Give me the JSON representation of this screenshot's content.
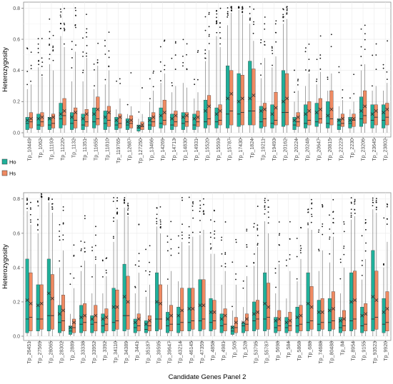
{
  "colors": {
    "ho": "#1fb09a",
    "hs": "#ef8a62",
    "grid": "#ebebeb",
    "panel_border": "#8c8c8c",
    "whisker": "#7a7a7a"
  },
  "legend": {
    "items": [
      {
        "key": "ho",
        "label": "Ho"
      },
      {
        "key": "hs",
        "label": "Hs"
      }
    ]
  },
  "chart_data": [
    {
      "type": "box",
      "title": "",
      "xlabel": "",
      "ylabel": "Heterozygosity",
      "ylim": [
        0,
        0.82
      ],
      "yticks": [
        "0.0",
        "0.2",
        "0.4",
        "0.6",
        "0.8"
      ],
      "legend_position": "left",
      "categories": [
        "Tp_10449",
        "Tp_1062",
        "Tp_11193",
        "Tp_11220",
        "Tp_1132",
        "Tp_11351",
        "Tp_11655",
        "Tp_11810",
        "Tp_119765",
        "Tp_12687",
        "Tp_127250",
        "Tp_13466",
        "Tp_14269",
        "Tp_14713",
        "Tp_14830",
        "Tp_14931",
        "Tp_15520",
        "Tp_15593",
        "Tp_15787",
        "Tp_17430",
        "Tp_1824",
        "Tp_19211",
        "Tp_19493",
        "Tp_20162",
        "Tp_20224",
        "Tp_20248",
        "Tp_20647",
        "Tp_20815",
        "Tp_22223",
        "Tp_2230",
        "Tp_23206",
        "Tp_23645",
        "Tp_23802"
      ],
      "series": [
        {
          "name": "Ho",
          "q1": [
            0.02,
            0.02,
            0.02,
            0.03,
            0.02,
            0.02,
            0.03,
            0.02,
            0.02,
            0.02,
            0.01,
            0.02,
            0.03,
            0.02,
            0.02,
            0.02,
            0.03,
            0.03,
            0.03,
            0.04,
            0.05,
            0.03,
            0.03,
            0.04,
            0.02,
            0.03,
            0.04,
            0.03,
            0.02,
            0.03,
            0.04,
            0.03,
            0.03
          ],
          "median": [
            0.06,
            0.05,
            0.05,
            0.09,
            0.06,
            0.05,
            0.07,
            0.06,
            0.05,
            0.05,
            0.03,
            0.05,
            0.06,
            0.05,
            0.06,
            0.05,
            0.07,
            0.07,
            0.12,
            0.12,
            0.14,
            0.07,
            0.06,
            0.13,
            0.05,
            0.06,
            0.07,
            0.06,
            0.05,
            0.06,
            0.09,
            0.08,
            0.08
          ],
          "q3": [
            0.1,
            0.12,
            0.1,
            0.19,
            0.13,
            0.12,
            0.16,
            0.14,
            0.1,
            0.09,
            0.05,
            0.1,
            0.16,
            0.12,
            0.13,
            0.12,
            0.21,
            0.16,
            0.43,
            0.38,
            0.46,
            0.17,
            0.18,
            0.4,
            0.1,
            0.18,
            0.19,
            0.2,
            0.09,
            0.1,
            0.23,
            0.18,
            0.18
          ],
          "whisker_low": [
            0,
            0,
            0,
            0,
            0,
            0,
            0,
            0,
            0,
            0,
            0,
            0,
            0,
            0,
            0,
            0,
            0,
            0,
            0,
            0,
            0,
            0,
            0,
            0,
            0,
            0,
            0,
            0,
            0,
            0,
            0,
            0,
            0
          ],
          "whisker_high": [
            0.28,
            0.42,
            0.44,
            0.62,
            0.33,
            0.33,
            0.28,
            0.31,
            0.15,
            0.12,
            0.09,
            0.2,
            0.32,
            0.26,
            0.32,
            0.22,
            0.46,
            0.62,
            0.69,
            0.79,
            0.7,
            0.35,
            0.42,
            0.7,
            0.2,
            0.3,
            0.31,
            0.27,
            0.17,
            0.15,
            0.4,
            0.27,
            0.27
          ],
          "mean": [
            0.08,
            0.09,
            0.09,
            0.12,
            0.1,
            0.09,
            0.12,
            0.1,
            0.08,
            0.07,
            0.04,
            0.08,
            0.11,
            0.09,
            0.1,
            0.09,
            0.14,
            0.12,
            0.22,
            0.2,
            0.22,
            0.14,
            0.12,
            0.2,
            0.08,
            0.12,
            0.13,
            0.11,
            0.08,
            0.08,
            0.14,
            0.12,
            0.13
          ]
        },
        {
          "name": "Hs",
          "q1": [
            0.03,
            0.04,
            0.03,
            0.05,
            0.03,
            0.04,
            0.05,
            0.04,
            0.03,
            0.03,
            0.02,
            0.04,
            0.05,
            0.04,
            0.04,
            0.04,
            0.05,
            0.05,
            0.05,
            0.05,
            0.05,
            0.04,
            0.05,
            0.05,
            0.04,
            0.05,
            0.06,
            0.05,
            0.04,
            0.04,
            0.06,
            0.05,
            0.05
          ],
          "median": [
            0.07,
            0.07,
            0.06,
            0.11,
            0.08,
            0.07,
            0.09,
            0.08,
            0.06,
            0.06,
            0.04,
            0.07,
            0.08,
            0.07,
            0.07,
            0.07,
            0.09,
            0.08,
            0.14,
            0.13,
            0.14,
            0.09,
            0.08,
            0.13,
            0.07,
            0.08,
            0.09,
            0.09,
            0.06,
            0.08,
            0.11,
            0.1,
            0.1
          ],
          "q3": [
            0.13,
            0.13,
            0.12,
            0.22,
            0.16,
            0.15,
            0.23,
            0.17,
            0.12,
            0.11,
            0.07,
            0.13,
            0.21,
            0.14,
            0.13,
            0.14,
            0.24,
            0.18,
            0.4,
            0.37,
            0.41,
            0.19,
            0.26,
            0.38,
            0.13,
            0.2,
            0.22,
            0.27,
            0.12,
            0.12,
            0.27,
            0.18,
            0.19
          ],
          "whisker_low": [
            0,
            0,
            0,
            0,
            0,
            0,
            0,
            0,
            0,
            0,
            0,
            0,
            0,
            0,
            0,
            0,
            0,
            0,
            0,
            0,
            0,
            0,
            0,
            0,
            0,
            0,
            0,
            0,
            0,
            0,
            0,
            0,
            0
          ],
          "whisker_high": [
            0.31,
            0.36,
            0.4,
            0.55,
            0.52,
            0.48,
            0.43,
            0.4,
            0.22,
            0.17,
            0.12,
            0.27,
            0.38,
            0.3,
            0.29,
            0.26,
            0.53,
            0.55,
            0.77,
            0.76,
            0.59,
            0.48,
            0.49,
            0.73,
            0.27,
            0.38,
            0.39,
            0.38,
            0.21,
            0.2,
            0.44,
            0.3,
            0.32
          ],
          "mean": [
            0.09,
            0.1,
            0.1,
            0.14,
            0.13,
            0.12,
            0.15,
            0.13,
            0.1,
            0.08,
            0.05,
            0.1,
            0.13,
            0.11,
            0.11,
            0.1,
            0.17,
            0.14,
            0.25,
            0.22,
            0.24,
            0.15,
            0.16,
            0.22,
            0.1,
            0.14,
            0.15,
            0.15,
            0.09,
            0.09,
            0.17,
            0.14,
            0.15
          ]
        }
      ]
    },
    {
      "type": "box",
      "title": "",
      "xlabel": "Candidate Genes Panel 2",
      "ylabel": "Heterozygosity",
      "ylim": [
        0,
        0.82
      ],
      "yticks": [
        "0.0",
        "0.2",
        "0.4",
        "0.6",
        "0.8"
      ],
      "legend_position": "left",
      "categories": [
        "Tp_26451",
        "Tp_27569",
        "Tp_28065",
        "Tp_28302",
        "Tp_2889",
        "Tp_33338",
        "Tp_33952",
        "Tp_3392",
        "Tp_34110",
        "Tp_34389",
        "Tp_3441",
        "Tp_35187",
        "Tp_39595",
        "Tp_39647",
        "Tp_43214",
        "Tp_46145",
        "Tp_47359",
        "Tp_4858",
        "Tp_4981",
        "Tp_505",
        "Tp_528",
        "Tp_53795",
        "Tp_55787",
        "Tp_5698",
        "Tp_584",
        "Tp_5868",
        "Tp_688",
        "Tp_74688",
        "Tp_80488",
        "Tp_84",
        "Tp_8954",
        "Tp_9155",
        "Tp_93523",
        "Tp_9920"
      ],
      "series": [
        {
          "name": "Ho",
          "q1": [
            0.02,
            0.03,
            0.03,
            0.02,
            0.01,
            0.02,
            0.02,
            0.02,
            0.03,
            0.03,
            0.02,
            0.02,
            0.03,
            0.02,
            0.02,
            0.03,
            0.03,
            0.03,
            0.02,
            0.01,
            0.02,
            0.03,
            0.03,
            0.02,
            0.02,
            0.02,
            0.03,
            0.03,
            0.03,
            0.02,
            0.03,
            0.02,
            0.03,
            0.02
          ],
          "median": [
            0.1,
            0.1,
            0.12,
            0.08,
            0.03,
            0.07,
            0.07,
            0.06,
            0.08,
            0.12,
            0.05,
            0.04,
            0.1,
            0.06,
            0.07,
            0.08,
            0.09,
            0.08,
            0.06,
            0.03,
            0.06,
            0.09,
            0.1,
            0.05,
            0.05,
            0.06,
            0.08,
            0.07,
            0.08,
            0.05,
            0.09,
            0.06,
            0.1,
            0.07
          ],
          "q3": [
            0.45,
            0.3,
            0.45,
            0.18,
            0.06,
            0.18,
            0.12,
            0.13,
            0.28,
            0.42,
            0.1,
            0.09,
            0.37,
            0.14,
            0.17,
            0.28,
            0.33,
            0.22,
            0.13,
            0.06,
            0.08,
            0.2,
            0.37,
            0.11,
            0.11,
            0.17,
            0.37,
            0.21,
            0.22,
            0.11,
            0.37,
            0.17,
            0.5,
            0.22
          ],
          "whisker_low": [
            0,
            0,
            0,
            0,
            0,
            0,
            0,
            0,
            0,
            0,
            0,
            0,
            0,
            0,
            0,
            0,
            0,
            0,
            0,
            0,
            0,
            0,
            0,
            0,
            0,
            0,
            0,
            0,
            0,
            0,
            0,
            0,
            0,
            0
          ],
          "whisker_high": [
            0.73,
            0.6,
            0.78,
            0.4,
            0.13,
            0.38,
            0.25,
            0.25,
            0.55,
            0.75,
            0.25,
            0.23,
            0.64,
            0.3,
            0.32,
            0.53,
            0.59,
            0.48,
            0.3,
            0.15,
            0.17,
            0.41,
            0.67,
            0.25,
            0.22,
            0.32,
            0.63,
            0.38,
            0.43,
            0.25,
            0.68,
            0.33,
            0.74,
            0.4
          ],
          "mean": [
            0.21,
            0.18,
            0.25,
            0.13,
            0.05,
            0.11,
            0.1,
            0.1,
            0.17,
            0.23,
            0.08,
            0.07,
            0.2,
            0.1,
            0.12,
            0.16,
            0.18,
            0.14,
            0.1,
            0.05,
            0.08,
            0.13,
            0.19,
            0.09,
            0.08,
            0.11,
            0.19,
            0.14,
            0.15,
            0.09,
            0.2,
            0.12,
            0.23,
            0.14
          ]
        },
        {
          "name": "Hs",
          "q1": [
            0.03,
            0.04,
            0.04,
            0.03,
            0.02,
            0.03,
            0.03,
            0.03,
            0.04,
            0.04,
            0.03,
            0.03,
            0.04,
            0.03,
            0.03,
            0.04,
            0.04,
            0.04,
            0.03,
            0.02,
            0.03,
            0.04,
            0.04,
            0.03,
            0.03,
            0.03,
            0.04,
            0.04,
            0.04,
            0.03,
            0.04,
            0.03,
            0.04,
            0.03
          ],
          "median": [
            0.11,
            0.1,
            0.12,
            0.09,
            0.05,
            0.08,
            0.08,
            0.07,
            0.09,
            0.12,
            0.06,
            0.06,
            0.1,
            0.07,
            0.08,
            0.09,
            0.1,
            0.09,
            0.07,
            0.05,
            0.07,
            0.1,
            0.11,
            0.06,
            0.06,
            0.07,
            0.09,
            0.08,
            0.09,
            0.06,
            0.1,
            0.07,
            0.11,
            0.08
          ],
          "q3": [
            0.37,
            0.3,
            0.36,
            0.24,
            0.1,
            0.19,
            0.18,
            0.16,
            0.27,
            0.35,
            0.13,
            0.12,
            0.3,
            0.18,
            0.28,
            0.28,
            0.33,
            0.21,
            0.16,
            0.11,
            0.13,
            0.21,
            0.31,
            0.15,
            0.14,
            0.18,
            0.29,
            0.22,
            0.26,
            0.15,
            0.38,
            0.19,
            0.38,
            0.26
          ],
          "whisker_low": [
            0,
            0,
            0,
            0,
            0,
            0,
            0,
            0,
            0,
            0,
            0,
            0,
            0,
            0,
            0,
            0,
            0,
            0,
            0,
            0,
            0,
            0,
            0,
            0,
            0,
            0,
            0,
            0,
            0,
            0,
            0,
            0,
            0,
            0
          ],
          "whisker_high": [
            0.65,
            0.82,
            0.72,
            0.5,
            0.28,
            0.44,
            0.42,
            0.35,
            0.68,
            0.7,
            0.37,
            0.3,
            0.6,
            0.38,
            0.55,
            0.58,
            0.62,
            0.48,
            0.38,
            0.3,
            0.35,
            0.52,
            0.6,
            0.42,
            0.38,
            0.45,
            0.62,
            0.5,
            0.58,
            0.4,
            0.7,
            0.45,
            0.72,
            0.55
          ],
          "mean": [
            0.19,
            0.19,
            0.22,
            0.15,
            0.08,
            0.12,
            0.12,
            0.11,
            0.17,
            0.2,
            0.1,
            0.09,
            0.19,
            0.12,
            0.15,
            0.16,
            0.18,
            0.14,
            0.12,
            0.08,
            0.1,
            0.14,
            0.17,
            0.1,
            0.09,
            0.12,
            0.17,
            0.14,
            0.16,
            0.1,
            0.21,
            0.13,
            0.21,
            0.16
          ]
        }
      ]
    }
  ]
}
